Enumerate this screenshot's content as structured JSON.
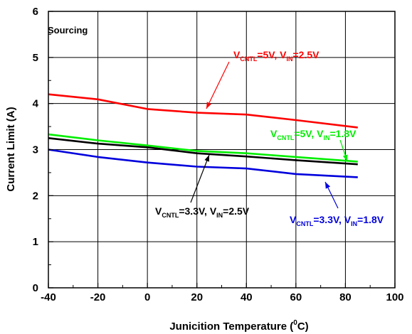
{
  "chart_data": {
    "type": "line",
    "title": "",
    "xlabel": "Junicition Temperature (",
    "xlabel_sup": "0",
    "xlabel_unit": "C)",
    "ylabel": "Current Limit (A)",
    "xlim": [
      -40,
      100
    ],
    "ylim": [
      0,
      6
    ],
    "xticks": [
      "-40",
      "-20",
      "0",
      "20",
      "40",
      "60",
      "80",
      "100"
    ],
    "yticks": [
      "0",
      "1",
      "2",
      "3",
      "4",
      "5",
      "6"
    ],
    "grid": true,
    "annotation_text": "Sourcing",
    "series": [
      {
        "name": "VCNTL=5V, VIN=2.5V",
        "label": {
          "v1": "V",
          "s1": "CNTL",
          "m": "=5V, V",
          "s2": "IN",
          "e": "=2.5V"
        },
        "color": "#ff0000",
        "x": [
          -40,
          -20,
          0,
          20,
          40,
          60,
          85
        ],
        "y": [
          4.2,
          4.09,
          3.88,
          3.8,
          3.76,
          3.64,
          3.48
        ]
      },
      {
        "name": "VCNTL=5V, VIN=1.8V",
        "label": {
          "v1": "V",
          "s1": "CNTL",
          "m": "=5V, V",
          "s2": "IN",
          "e": "=1.8V"
        },
        "color": "#00ee00",
        "x": [
          -40,
          -20,
          0,
          20,
          40,
          60,
          85
        ],
        "y": [
          3.33,
          3.2,
          3.09,
          2.97,
          2.92,
          2.84,
          2.74
        ]
      },
      {
        "name": "VCNTL=3.3V, VIN=2.5V",
        "label": {
          "v1": "V",
          "s1": "CNTL",
          "m": "=3.3V, V",
          "s2": "IN",
          "e": "=2.5V"
        },
        "color": "#000000",
        "x": [
          -40,
          -20,
          0,
          20,
          40,
          60,
          85
        ],
        "y": [
          3.25,
          3.13,
          3.05,
          2.92,
          2.85,
          2.77,
          2.68
        ]
      },
      {
        "name": "VCNTL=3.3V, VIN=1.8V",
        "label": {
          "v1": "V",
          "s1": "CNTL",
          "m": "=3.3V, V",
          "s2": "IN",
          "e": "=1.8V"
        },
        "color": "#0000dd",
        "x": [
          -40,
          -20,
          0,
          20,
          40,
          60,
          85
        ],
        "y": [
          3.0,
          2.84,
          2.72,
          2.63,
          2.59,
          2.47,
          2.4
        ]
      }
    ]
  }
}
